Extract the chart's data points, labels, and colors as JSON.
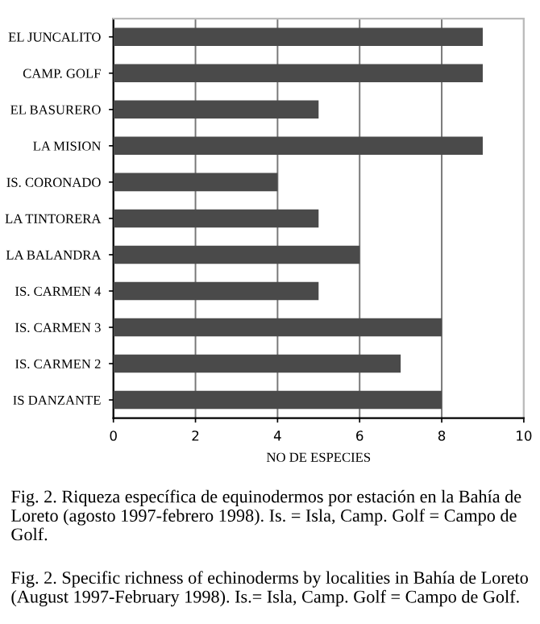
{
  "chart_data": {
    "type": "bar",
    "orientation": "horizontal",
    "categories": [
      "EL JUNCALITO",
      "CAMP. GOLF",
      "EL BASURERO",
      "LA MISION",
      "IS. CORONADO",
      "LA TINTORERA",
      "LA BALANDRA",
      "IS. CARMEN 4",
      "IS. CARMEN 3",
      "IS. CARMEN 2",
      "IS DANZANTE"
    ],
    "values": [
      9,
      9,
      5,
      9,
      4,
      5,
      6,
      5,
      8,
      7,
      8
    ],
    "color": "#4a4a4a",
    "xlabel": "NO DE ESPECIES",
    "xlim": [
      0,
      10
    ],
    "xticks": [
      0,
      2,
      4,
      6,
      8,
      10
    ],
    "grid": "x",
    "annotations": [
      "Fig. 2. Riqueza específica de equinodermos por estación en la Bahía de Loreto (agosto 1997-febrero 1998). Is. = Isla, Camp. Golf = Campo de Golf.",
      "Fig. 2. Specific richness of echinoderms by localities in Bahía de Loreto (August 1997-February 1998). Is.= Isla, Camp. Golf = Campo de Golf."
    ]
  }
}
